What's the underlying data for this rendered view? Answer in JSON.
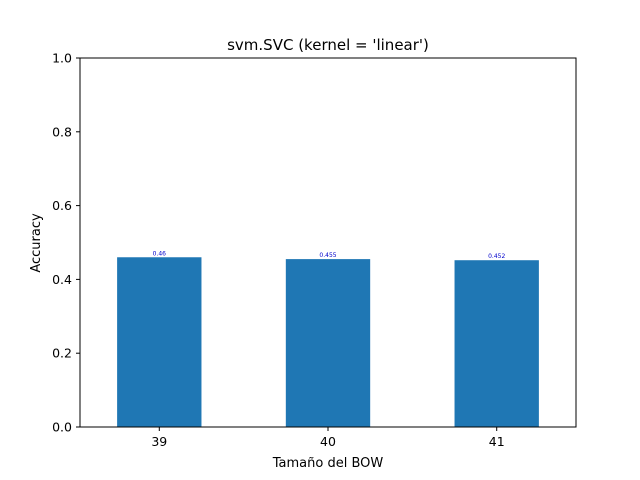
{
  "chart_data": {
    "type": "bar",
    "title": "svm.SVC (kernel = 'linear')",
    "xlabel": "Tamaño del BOW",
    "ylabel": "Accuracy",
    "categories": [
      "39",
      "40",
      "41"
    ],
    "values": [
      0.46,
      0.455,
      0.452
    ],
    "data_labels": [
      "0.46",
      "0.455",
      "0.452"
    ],
    "ylim": [
      0,
      1.0
    ],
    "yticks": [
      "0.0",
      "0.2",
      "0.4",
      "0.6",
      "0.8",
      "1.0"
    ],
    "grid": false,
    "bar_color": "#1f77b4",
    "data_label_color": "#0000cc"
  }
}
